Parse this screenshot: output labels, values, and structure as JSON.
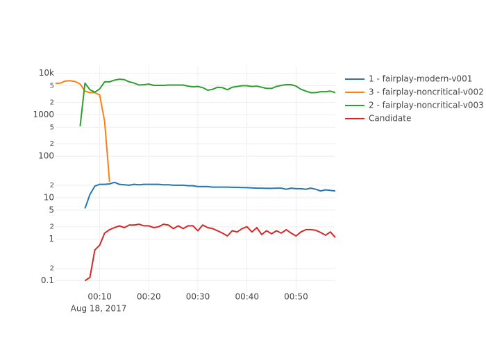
{
  "chart_data": {
    "type": "line",
    "log_y": true,
    "grid": true,
    "legend": "right",
    "x_date_label": "Aug 18, 2017",
    "xlim": [
      1,
      58
    ],
    "ylim": [
      0.055,
      15000
    ],
    "xticks": [
      {
        "value": 10,
        "label": "00:10"
      },
      {
        "value": 20,
        "label": "00:20"
      },
      {
        "value": 30,
        "label": "00:30"
      },
      {
        "value": 40,
        "label": "00:40"
      },
      {
        "value": 50,
        "label": "00:50"
      }
    ],
    "yticks": [
      0.1,
      {
        "value": 0.2,
        "label": "2"
      },
      1,
      {
        "value": 2,
        "label": "2"
      },
      5,
      10,
      {
        "value": 20,
        "label": "2"
      },
      100,
      {
        "value": 200,
        "label": "2"
      },
      {
        "value": 500,
        "label": "5"
      },
      1000,
      {
        "value": 2000,
        "label": "2"
      },
      {
        "value": 5000,
        "label": "5"
      },
      {
        "value": 10000,
        "label": "10k"
      }
    ],
    "series": [
      {
        "name": "1 - fairplay-modern-v001",
        "color": "#1f77b4",
        "x": [
          7,
          8,
          9,
          10,
          11,
          12,
          13,
          14,
          15,
          16,
          17,
          18,
          19,
          20,
          21,
          22,
          23,
          24,
          25,
          26,
          27,
          28,
          29,
          30,
          31,
          32,
          33,
          34,
          35,
          36,
          37,
          38,
          39,
          40,
          41,
          42,
          43,
          44,
          45,
          46,
          47,
          48,
          49,
          50,
          51,
          52,
          53,
          54,
          55,
          56,
          57,
          58
        ],
        "values": [
          5.5,
          12,
          19,
          21,
          21,
          21.5,
          23.5,
          21,
          20.5,
          20,
          21,
          20.5,
          21,
          21,
          21,
          21,
          20.5,
          20.5,
          20,
          20,
          20,
          19.5,
          19.5,
          18.5,
          18.5,
          18.5,
          18,
          18,
          18,
          18,
          17.8,
          17.8,
          17.6,
          17.5,
          17.3,
          17,
          17,
          16.8,
          16.8,
          17,
          17,
          16,
          17,
          16.5,
          16.5,
          16,
          17,
          16,
          14.5,
          15.5,
          15,
          14.5
        ]
      },
      {
        "name": "3 - fairplay-noncritical-v002",
        "color": "#ff7f0e",
        "x": [
          1,
          2,
          3,
          4,
          5,
          6,
          7,
          8,
          9,
          10,
          11,
          12
        ],
        "values": [
          5700,
          5800,
          6500,
          6600,
          6300,
          5500,
          3700,
          3400,
          3400,
          3000,
          690,
          24
        ]
      },
      {
        "name": "2 - fairplay-noncritical-v003",
        "color": "#2ca02c",
        "x": [
          6,
          7,
          8,
          9,
          10,
          11,
          12,
          13,
          14,
          15,
          16,
          17,
          18,
          19,
          20,
          21,
          22,
          23,
          24,
          25,
          26,
          27,
          28,
          29,
          30,
          31,
          32,
          33,
          34,
          35,
          36,
          37,
          38,
          39,
          40,
          41,
          42,
          43,
          44,
          45,
          46,
          47,
          48,
          49,
          50,
          51,
          52,
          53,
          54,
          55,
          56,
          57,
          58
        ],
        "values": [
          525,
          5800,
          4000,
          3500,
          4200,
          6200,
          6200,
          6800,
          7200,
          7000,
          6200,
          5800,
          5200,
          5300,
          5500,
          5100,
          5100,
          5100,
          5200,
          5200,
          5200,
          5200,
          4900,
          4700,
          4800,
          4500,
          3900,
          4100,
          4600,
          4500,
          4000,
          4600,
          4800,
          5000,
          5000,
          4800,
          4900,
          4600,
          4300,
          4300,
          4800,
          5100,
          5300,
          5300,
          4900,
          4100,
          3700,
          3400,
          3400,
          3600,
          3600,
          3700,
          3400
        ]
      },
      {
        "name": "Candidate",
        "color": "#d62728",
        "x": [
          7,
          8,
          9,
          10,
          11,
          12,
          13,
          14,
          15,
          16,
          17,
          18,
          19,
          20,
          21,
          22,
          23,
          24,
          25,
          26,
          27,
          28,
          29,
          30,
          31,
          32,
          33,
          34,
          35,
          36,
          37,
          38,
          39,
          40,
          41,
          42,
          43,
          44,
          45,
          46,
          47,
          48,
          49,
          50,
          51,
          52,
          53,
          54,
          55,
          56,
          57,
          58
        ],
        "values": [
          0.1,
          0.12,
          0.55,
          0.72,
          1.4,
          1.7,
          1.9,
          2.1,
          1.9,
          2.2,
          2.2,
          2.3,
          2.1,
          2.1,
          1.9,
          2.0,
          2.3,
          2.2,
          1.8,
          2.1,
          1.8,
          2.1,
          2.1,
          1.6,
          2.2,
          1.9,
          1.8,
          1.6,
          1.4,
          1.2,
          1.6,
          1.5,
          1.8,
          2.0,
          1.5,
          1.9,
          1.3,
          1.6,
          1.35,
          1.6,
          1.4,
          1.7,
          1.4,
          1.2,
          1.5,
          1.7,
          1.7,
          1.65,
          1.45,
          1.25,
          1.5,
          1.1
        ]
      }
    ]
  }
}
